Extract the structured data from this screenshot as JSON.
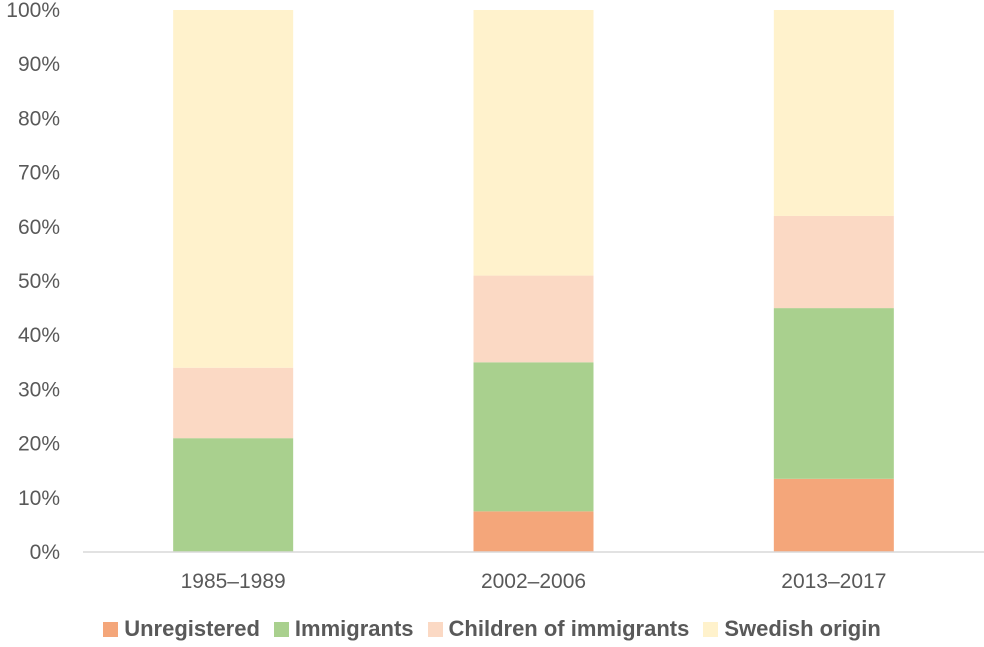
{
  "chart_data": {
    "type": "bar",
    "stacked": true,
    "categories": [
      "1985–1989",
      "2002–2006",
      "2013–2017"
    ],
    "series": [
      {
        "name": "Unregistered",
        "color": "#f4a67a",
        "values": [
          0,
          7.5,
          13.5
        ]
      },
      {
        "name": "Immigrants",
        "color": "#a9d08e",
        "values": [
          21,
          27.5,
          31.5
        ]
      },
      {
        "name": "Children of immigrants",
        "color": "#fbd9c4",
        "values": [
          13,
          16,
          17
        ]
      },
      {
        "name": "Swedish origin",
        "color": "#fff2cc",
        "values": [
          66,
          49,
          38
        ]
      }
    ],
    "yticks": [
      "0%",
      "10%",
      "20%",
      "30%",
      "40%",
      "50%",
      "60%",
      "70%",
      "80%",
      "90%",
      "100%"
    ],
    "ylim": [
      0,
      100
    ],
    "grid": false,
    "legend_position": "bottom"
  }
}
